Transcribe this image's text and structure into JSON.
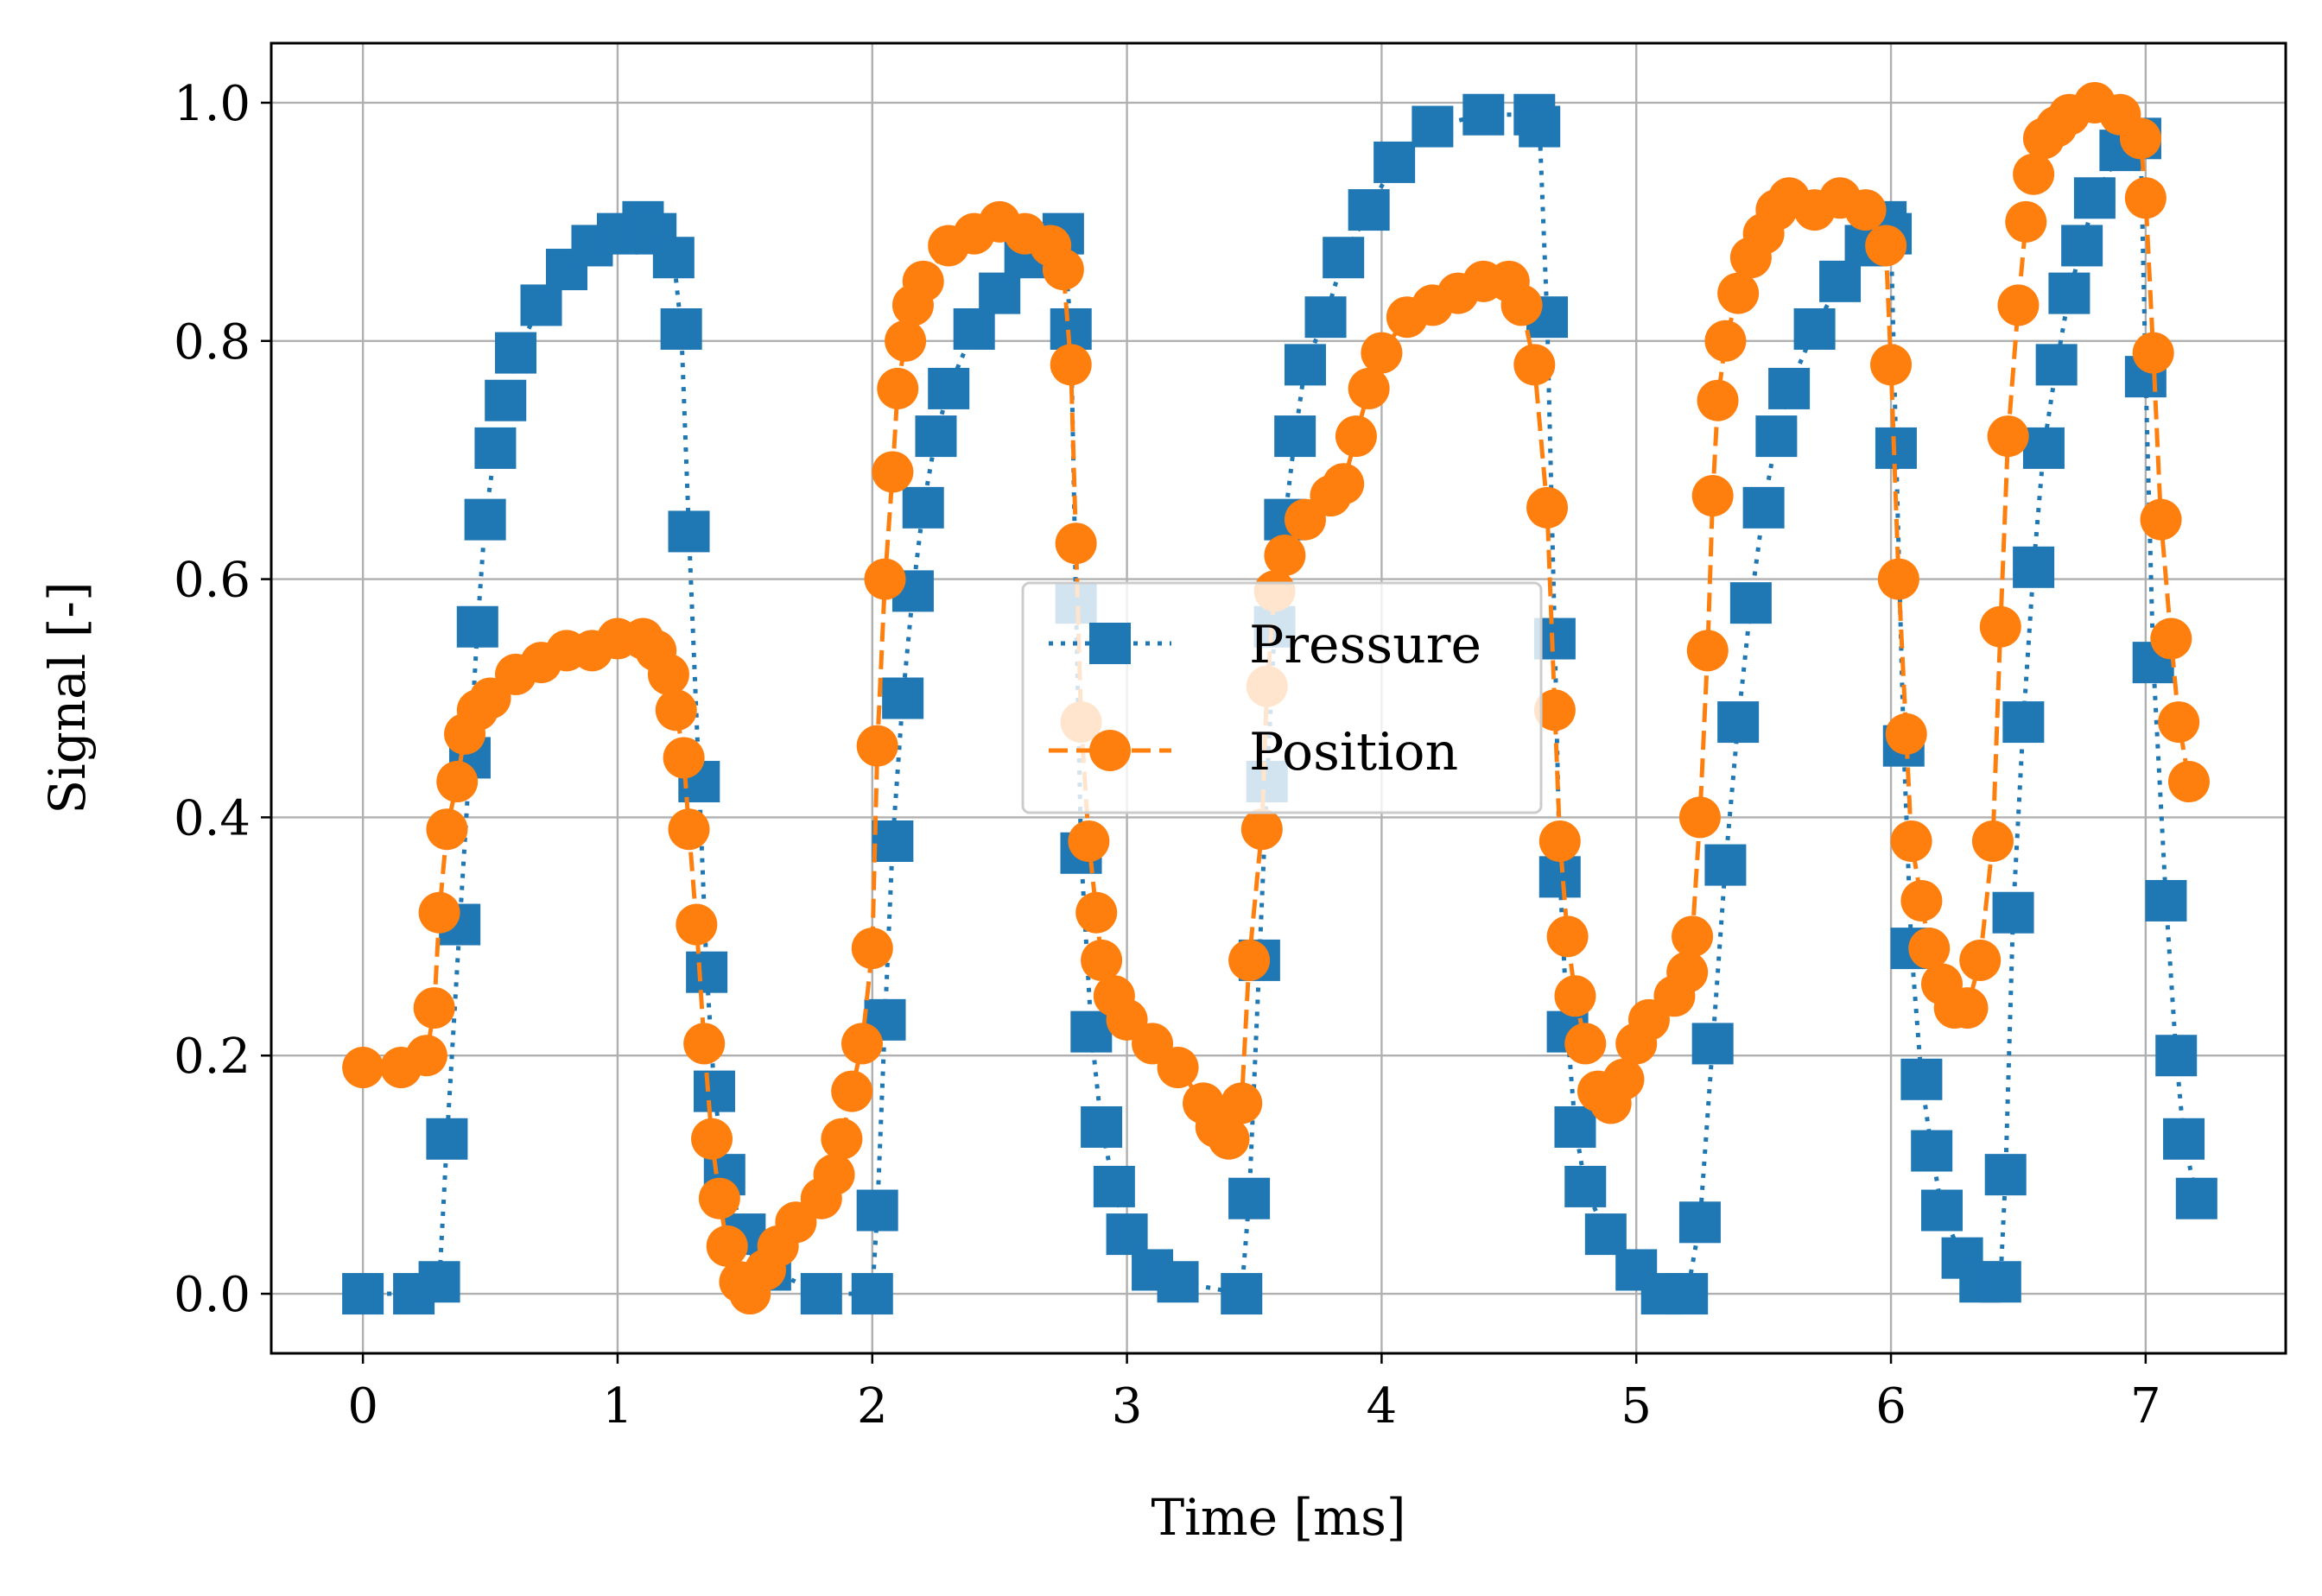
{
  "chart_data": {
    "type": "line",
    "title": "",
    "xlabel": "Time [ms]",
    "ylabel": "Signal [-]",
    "xlim": [
      -0.36,
      7.55
    ],
    "ylim": [
      -0.05,
      1.05
    ],
    "xticks": [
      0,
      1,
      2,
      3,
      4,
      5,
      6,
      7
    ],
    "xtick_labels": [
      "0",
      "1",
      "2",
      "3",
      "4",
      "5",
      "6",
      "7"
    ],
    "yticks": [
      0.0,
      0.2,
      0.4,
      0.6,
      0.8,
      1.0
    ],
    "ytick_labels": [
      "0.0",
      "0.2",
      "0.4",
      "0.6",
      "0.8",
      "1.0"
    ],
    "grid": true,
    "legend_position": "center",
    "series": [
      {
        "name": "Pressure",
        "color": "#1f77b4",
        "marker": "square",
        "linestyle": "dotted",
        "points": [
          [
            0.0,
            0.0
          ],
          [
            0.2,
            0.0
          ],
          [
            0.3,
            0.01
          ],
          [
            0.33,
            0.13
          ],
          [
            0.38,
            0.31
          ],
          [
            0.42,
            0.45
          ],
          [
            0.45,
            0.56
          ],
          [
            0.48,
            0.65
          ],
          [
            0.52,
            0.71
          ],
          [
            0.56,
            0.75
          ],
          [
            0.6,
            0.79
          ],
          [
            0.7,
            0.83
          ],
          [
            0.8,
            0.86
          ],
          [
            0.9,
            0.88
          ],
          [
            1.0,
            0.89
          ],
          [
            1.1,
            0.9
          ],
          [
            1.15,
            0.89
          ],
          [
            1.22,
            0.87
          ],
          [
            1.25,
            0.81
          ],
          [
            1.28,
            0.64
          ],
          [
            1.32,
            0.43
          ],
          [
            1.35,
            0.27
          ],
          [
            1.38,
            0.17
          ],
          [
            1.42,
            0.1
          ],
          [
            1.5,
            0.05
          ],
          [
            1.6,
            0.02
          ],
          [
            1.8,
            0.0
          ],
          [
            2.0,
            0.0
          ],
          [
            2.02,
            0.07
          ],
          [
            2.05,
            0.23
          ],
          [
            2.08,
            0.38
          ],
          [
            2.12,
            0.5
          ],
          [
            2.16,
            0.59
          ],
          [
            2.2,
            0.66
          ],
          [
            2.25,
            0.72
          ],
          [
            2.3,
            0.76
          ],
          [
            2.4,
            0.81
          ],
          [
            2.5,
            0.84
          ],
          [
            2.6,
            0.87
          ],
          [
            2.7,
            0.88
          ],
          [
            2.75,
            0.89
          ],
          [
            2.78,
            0.81
          ],
          [
            2.8,
            0.58
          ],
          [
            2.82,
            0.37
          ],
          [
            2.86,
            0.22
          ],
          [
            2.9,
            0.14
          ],
          [
            2.95,
            0.09
          ],
          [
            3.0,
            0.05
          ],
          [
            3.1,
            0.02
          ],
          [
            3.2,
            0.01
          ],
          [
            3.45,
            0.0
          ],
          [
            3.48,
            0.08
          ],
          [
            3.52,
            0.28
          ],
          [
            3.55,
            0.43
          ],
          [
            3.58,
            0.56
          ],
          [
            3.62,
            0.65
          ],
          [
            3.66,
            0.72
          ],
          [
            3.7,
            0.78
          ],
          [
            3.78,
            0.82
          ],
          [
            3.85,
            0.87
          ],
          [
            3.95,
            0.91
          ],
          [
            4.05,
            0.95
          ],
          [
            4.2,
            0.98
          ],
          [
            4.4,
            0.99
          ],
          [
            4.6,
            0.99
          ],
          [
            4.62,
            0.98
          ],
          [
            4.65,
            0.82
          ],
          [
            4.68,
            0.55
          ],
          [
            4.7,
            0.35
          ],
          [
            4.73,
            0.22
          ],
          [
            4.76,
            0.14
          ],
          [
            4.8,
            0.09
          ],
          [
            4.88,
            0.05
          ],
          [
            5.0,
            0.02
          ],
          [
            5.1,
            0.0
          ],
          [
            5.2,
            0.0
          ],
          [
            5.25,
            0.06
          ],
          [
            5.3,
            0.21
          ],
          [
            5.35,
            0.36
          ],
          [
            5.4,
            0.48
          ],
          [
            5.45,
            0.58
          ],
          [
            5.5,
            0.66
          ],
          [
            5.55,
            0.72
          ],
          [
            5.6,
            0.76
          ],
          [
            5.7,
            0.81
          ],
          [
            5.8,
            0.85
          ],
          [
            5.9,
            0.88
          ],
          [
            5.98,
            0.9
          ],
          [
            6.0,
            0.89
          ],
          [
            6.02,
            0.71
          ],
          [
            6.05,
            0.46
          ],
          [
            6.08,
            0.29
          ],
          [
            6.12,
            0.18
          ],
          [
            6.16,
            0.12
          ],
          [
            6.2,
            0.07
          ],
          [
            6.28,
            0.03
          ],
          [
            6.35,
            0.01
          ],
          [
            6.43,
            0.01
          ],
          [
            6.45,
            0.1
          ],
          [
            6.48,
            0.32
          ],
          [
            6.52,
            0.48
          ],
          [
            6.56,
            0.61
          ],
          [
            6.6,
            0.71
          ],
          [
            6.65,
            0.78
          ],
          [
            6.7,
            0.84
          ],
          [
            6.75,
            0.88
          ],
          [
            6.8,
            0.92
          ],
          [
            6.9,
            0.96
          ],
          [
            6.98,
            0.97
          ],
          [
            7.0,
            0.77
          ],
          [
            7.03,
            0.53
          ],
          [
            7.08,
            0.33
          ],
          [
            7.12,
            0.2
          ],
          [
            7.15,
            0.13
          ],
          [
            7.2,
            0.08
          ]
        ]
      },
      {
        "name": "Position",
        "color": "#ff7f0e",
        "marker": "circle",
        "linestyle": "dashed",
        "points": [
          [
            0.0,
            0.19
          ],
          [
            0.15,
            0.19
          ],
          [
            0.25,
            0.2
          ],
          [
            0.28,
            0.24
          ],
          [
            0.3,
            0.32
          ],
          [
            0.33,
            0.39
          ],
          [
            0.37,
            0.43
          ],
          [
            0.4,
            0.47
          ],
          [
            0.45,
            0.49
          ],
          [
            0.5,
            0.5
          ],
          [
            0.6,
            0.52
          ],
          [
            0.7,
            0.53
          ],
          [
            0.8,
            0.54
          ],
          [
            0.9,
            0.54
          ],
          [
            1.0,
            0.55
          ],
          [
            1.1,
            0.55
          ],
          [
            1.15,
            0.54
          ],
          [
            1.2,
            0.52
          ],
          [
            1.23,
            0.49
          ],
          [
            1.26,
            0.45
          ],
          [
            1.28,
            0.39
          ],
          [
            1.31,
            0.31
          ],
          [
            1.34,
            0.21
          ],
          [
            1.37,
            0.13
          ],
          [
            1.4,
            0.08
          ],
          [
            1.43,
            0.04
          ],
          [
            1.48,
            0.01
          ],
          [
            1.52,
            0.0
          ],
          [
            1.58,
            0.02
          ],
          [
            1.63,
            0.04
          ],
          [
            1.7,
            0.06
          ],
          [
            1.8,
            0.08
          ],
          [
            1.85,
            0.1
          ],
          [
            1.88,
            0.13
          ],
          [
            1.92,
            0.17
          ],
          [
            1.96,
            0.21
          ],
          [
            2.0,
            0.29
          ],
          [
            2.02,
            0.46
          ],
          [
            2.05,
            0.6
          ],
          [
            2.08,
            0.69
          ],
          [
            2.1,
            0.76
          ],
          [
            2.13,
            0.8
          ],
          [
            2.16,
            0.83
          ],
          [
            2.2,
            0.85
          ],
          [
            2.3,
            0.88
          ],
          [
            2.4,
            0.89
          ],
          [
            2.5,
            0.9
          ],
          [
            2.6,
            0.89
          ],
          [
            2.7,
            0.88
          ],
          [
            2.75,
            0.86
          ],
          [
            2.78,
            0.78
          ],
          [
            2.8,
            0.63
          ],
          [
            2.82,
            0.48
          ],
          [
            2.85,
            0.38
          ],
          [
            2.88,
            0.32
          ],
          [
            2.9,
            0.28
          ],
          [
            2.95,
            0.25
          ],
          [
            3.0,
            0.23
          ],
          [
            3.1,
            0.21
          ],
          [
            3.2,
            0.19
          ],
          [
            3.3,
            0.16
          ],
          [
            3.35,
            0.14
          ],
          [
            3.4,
            0.13
          ],
          [
            3.45,
            0.16
          ],
          [
            3.48,
            0.28
          ],
          [
            3.53,
            0.39
          ],
          [
            3.55,
            0.51
          ],
          [
            3.58,
            0.59
          ],
          [
            3.62,
            0.62
          ],
          [
            3.7,
            0.65
          ],
          [
            3.8,
            0.67
          ],
          [
            3.85,
            0.68
          ],
          [
            3.9,
            0.72
          ],
          [
            3.95,
            0.76
          ],
          [
            4.0,
            0.79
          ],
          [
            4.1,
            0.82
          ],
          [
            4.2,
            0.83
          ],
          [
            4.3,
            0.84
          ],
          [
            4.4,
            0.85
          ],
          [
            4.5,
            0.85
          ],
          [
            4.55,
            0.83
          ],
          [
            4.6,
            0.78
          ],
          [
            4.65,
            0.66
          ],
          [
            4.68,
            0.49
          ],
          [
            4.7,
            0.38
          ],
          [
            4.73,
            0.3
          ],
          [
            4.76,
            0.25
          ],
          [
            4.8,
            0.21
          ],
          [
            4.85,
            0.17
          ],
          [
            4.9,
            0.16
          ],
          [
            4.95,
            0.18
          ],
          [
            5.0,
            0.21
          ],
          [
            5.05,
            0.23
          ],
          [
            5.15,
            0.25
          ],
          [
            5.2,
            0.27
          ],
          [
            5.22,
            0.3
          ],
          [
            5.25,
            0.4
          ],
          [
            5.28,
            0.54
          ],
          [
            5.3,
            0.67
          ],
          [
            5.32,
            0.75
          ],
          [
            5.35,
            0.8
          ],
          [
            5.4,
            0.84
          ],
          [
            5.45,
            0.87
          ],
          [
            5.5,
            0.89
          ],
          [
            5.55,
            0.91
          ],
          [
            5.6,
            0.92
          ],
          [
            5.7,
            0.91
          ],
          [
            5.8,
            0.92
          ],
          [
            5.9,
            0.91
          ],
          [
            5.98,
            0.88
          ],
          [
            6.0,
            0.78
          ],
          [
            6.03,
            0.6
          ],
          [
            6.06,
            0.47
          ],
          [
            6.08,
            0.38
          ],
          [
            6.12,
            0.33
          ],
          [
            6.15,
            0.29
          ],
          [
            6.2,
            0.26
          ],
          [
            6.25,
            0.24
          ],
          [
            6.3,
            0.24
          ],
          [
            6.35,
            0.28
          ],
          [
            6.4,
            0.38
          ],
          [
            6.43,
            0.56
          ],
          [
            6.46,
            0.72
          ],
          [
            6.5,
            0.83
          ],
          [
            6.53,
            0.9
          ],
          [
            6.56,
            0.94
          ],
          [
            6.6,
            0.97
          ],
          [
            6.65,
            0.98
          ],
          [
            6.7,
            0.99
          ],
          [
            6.8,
            1.0
          ],
          [
            6.9,
            0.99
          ],
          [
            6.98,
            0.97
          ],
          [
            7.0,
            0.92
          ],
          [
            7.03,
            0.79
          ],
          [
            7.06,
            0.65
          ],
          [
            7.1,
            0.55
          ],
          [
            7.13,
            0.48
          ],
          [
            7.17,
            0.43
          ]
        ]
      }
    ]
  }
}
